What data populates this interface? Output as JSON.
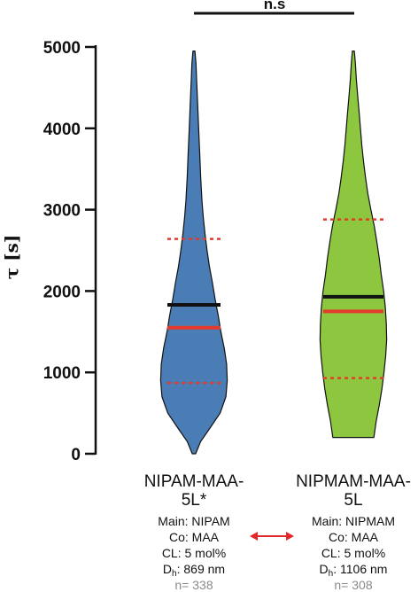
{
  "chart_data": {
    "type": "violin",
    "ylabel": "τ [s]",
    "ylim": [
      0,
      5000
    ],
    "yticks": [
      "0",
      "1000",
      "2000",
      "3000",
      "4000",
      "5000"
    ],
    "significance": "n.s",
    "colors": {
      "violin_1": "#4a7db5",
      "violin_2": "#8dc63f",
      "mean": "#111111",
      "median": "#e53a2b",
      "quartile": "#e53a2b",
      "arrow": "#e5262a"
    },
    "series": [
      {
        "label_lines": [
          "NIPAM-MAA-",
          "5L*"
        ],
        "info": {
          "main": "Main: NIPAM",
          "co": "Co: MAA",
          "cl": "CL: 5 mol%",
          "dh_prefix": "D",
          "dh_sub": "h",
          "dh_value": ": 869 nm",
          "n": "n= 338"
        },
        "min": 0,
        "max": 4950,
        "mean": 1830,
        "median": 1550,
        "q1": 870,
        "q3": 2640,
        "profile": [
          [
            0,
            0.05
          ],
          [
            150,
            0.2
          ],
          [
            300,
            0.45
          ],
          [
            500,
            0.78
          ],
          [
            700,
            0.95
          ],
          [
            900,
            0.99
          ],
          [
            1100,
            0.97
          ],
          [
            1300,
            0.9
          ],
          [
            1500,
            0.8
          ],
          [
            1700,
            0.72
          ],
          [
            1900,
            0.63
          ],
          [
            2100,
            0.55
          ],
          [
            2300,
            0.46
          ],
          [
            2500,
            0.39
          ],
          [
            2700,
            0.33
          ],
          [
            2900,
            0.28
          ],
          [
            3100,
            0.24
          ],
          [
            3400,
            0.2
          ],
          [
            3700,
            0.17
          ],
          [
            4000,
            0.14
          ],
          [
            4300,
            0.11
          ],
          [
            4600,
            0.08
          ],
          [
            4800,
            0.06
          ],
          [
            4950,
            0.03
          ]
        ]
      },
      {
        "label_lines": [
          "NIPMAM-MAA-",
          "5L"
        ],
        "info": {
          "main": "Main: NIPMAM",
          "co": "Co: MAA",
          "cl": "CL: 5 mol%",
          "dh_prefix": "D",
          "dh_sub": "h",
          "dh_value": ": 1106 nm",
          "n": "n= 308"
        },
        "min": 200,
        "max": 4950,
        "mean": 1930,
        "median": 1750,
        "q1": 930,
        "q3": 2880,
        "profile": [
          [
            200,
            0.61
          ],
          [
            400,
            0.68
          ],
          [
            600,
            0.77
          ],
          [
            800,
            0.85
          ],
          [
            1000,
            0.91
          ],
          [
            1200,
            0.96
          ],
          [
            1400,
            0.99
          ],
          [
            1600,
            0.98
          ],
          [
            1800,
            0.95
          ],
          [
            2000,
            0.9
          ],
          [
            2200,
            0.83
          ],
          [
            2400,
            0.77
          ],
          [
            2600,
            0.7
          ],
          [
            2800,
            0.62
          ],
          [
            3000,
            0.52
          ],
          [
            3200,
            0.43
          ],
          [
            3400,
            0.36
          ],
          [
            3600,
            0.3
          ],
          [
            3800,
            0.25
          ],
          [
            4000,
            0.21
          ],
          [
            4200,
            0.17
          ],
          [
            4400,
            0.13
          ],
          [
            4600,
            0.09
          ],
          [
            4800,
            0.06
          ],
          [
            4950,
            0.03
          ]
        ]
      }
    ]
  }
}
